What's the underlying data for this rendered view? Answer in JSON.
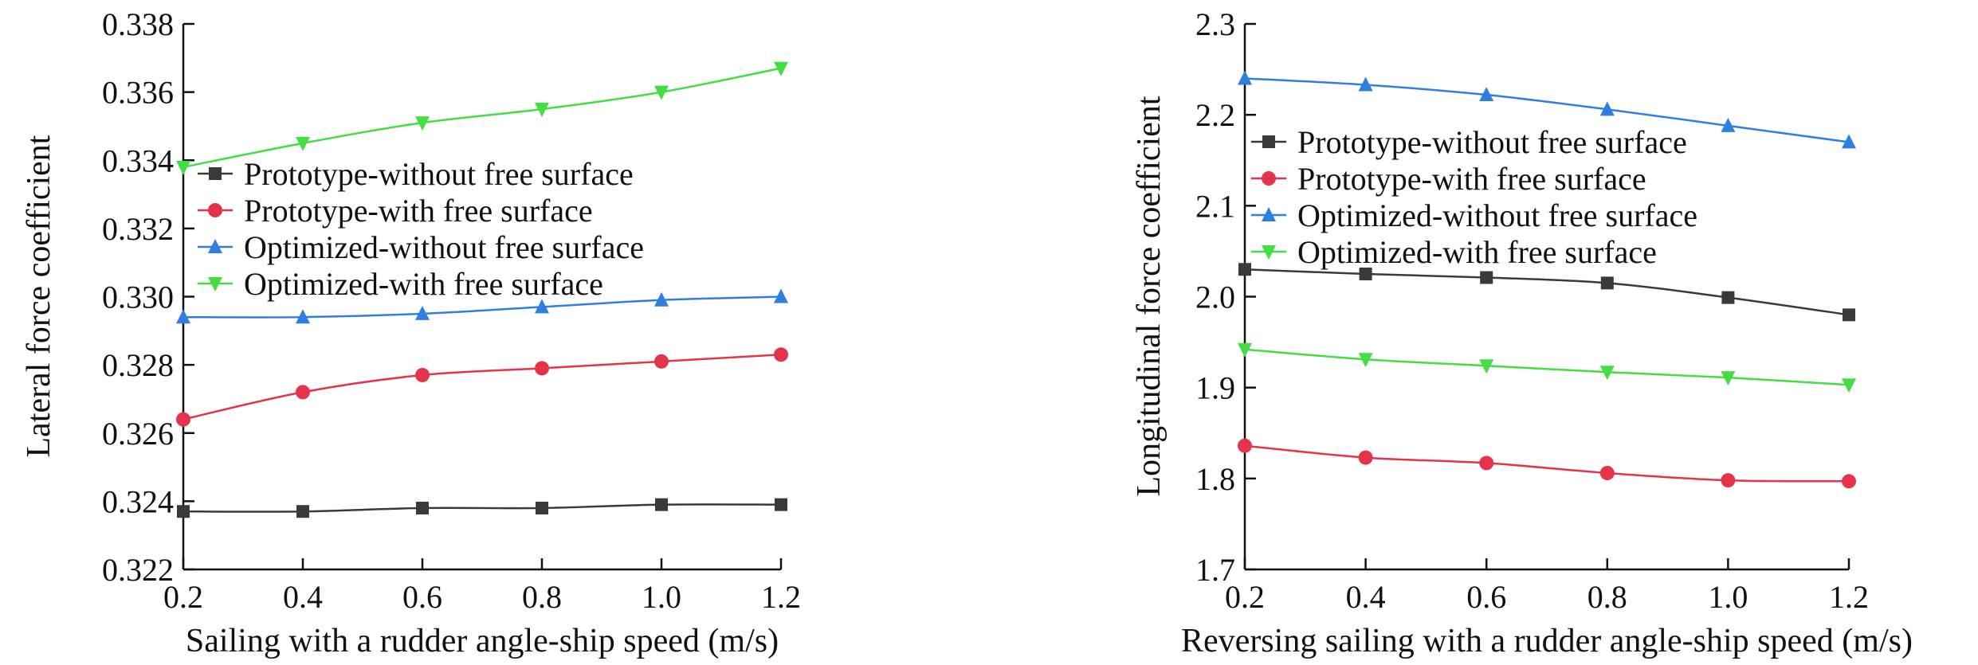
{
  "chart_data": [
    {
      "type": "line",
      "title": "",
      "xlabel": "Sailing with a rudder angle-ship speed (m/s)",
      "ylabel": "Lateral force coefficient",
      "x": [
        0.2,
        0.4,
        0.6,
        0.8,
        1.0,
        1.2
      ],
      "xlim": [
        0.2,
        1.2
      ],
      "ylim": [
        0.322,
        0.338
      ],
      "xticks": [
        "0.2",
        "0.4",
        "0.6",
        "0.8",
        "1.0",
        "1.2"
      ],
      "yticks": [
        "0.322",
        "0.324",
        "0.326",
        "0.328",
        "0.330",
        "0.332",
        "0.334",
        "0.336",
        "0.338"
      ],
      "grid": false,
      "legend_position": "upper-left",
      "series": [
        {
          "name": "Prototype-without free surface",
          "marker": "square",
          "color": "#3a3a3a",
          "values": [
            0.3237,
            0.3237,
            0.3238,
            0.3238,
            0.3239,
            0.3239
          ]
        },
        {
          "name": "Prototype-with free surface",
          "marker": "circle",
          "color": "#e5334b",
          "values": [
            0.3264,
            0.3272,
            0.3277,
            0.3279,
            0.3281,
            0.3283
          ]
        },
        {
          "name": "Optimized-without free surface",
          "marker": "triangle-up",
          "color": "#2f7fe0",
          "values": [
            0.3294,
            0.3294,
            0.3295,
            0.3297,
            0.3299,
            0.33
          ]
        },
        {
          "name": "Optimized-with free surface",
          "marker": "triangle-down",
          "color": "#44dd44",
          "values": [
            0.3338,
            0.3345,
            0.3351,
            0.3355,
            0.336,
            0.3367
          ]
        }
      ]
    },
    {
      "type": "line",
      "title": "",
      "xlabel": "Reversing sailing with a rudder angle-ship speed (m/s)",
      "ylabel": "Longitudinal force coefficient",
      "x": [
        0.2,
        0.4,
        0.6,
        0.8,
        1.0,
        1.2
      ],
      "xlim": [
        0.2,
        1.2
      ],
      "ylim": [
        1.7,
        2.3
      ],
      "xticks": [
        "0.2",
        "0.4",
        "0.6",
        "0.8",
        "1.0",
        "1.2"
      ],
      "yticks": [
        "1.7",
        "1.8",
        "1.9",
        "2.0",
        "2.1",
        "2.2",
        "2.3"
      ],
      "grid": false,
      "legend_position": "upper-left",
      "series": [
        {
          "name": "Prototype-without free surface",
          "marker": "square",
          "color": "#3a3a3a",
          "values": [
            2.03,
            2.025,
            2.021,
            2.015,
            1.999,
            1.98
          ]
        },
        {
          "name": "Prototype-with free surface",
          "marker": "circle",
          "color": "#e5334b",
          "values": [
            1.836,
            1.823,
            1.817,
            1.806,
            1.798,
            1.797
          ]
        },
        {
          "name": "Optimized-without free surface",
          "marker": "triangle-up",
          "color": "#2f7fe0",
          "values": [
            2.24,
            2.233,
            2.222,
            2.206,
            2.188,
            2.17
          ]
        },
        {
          "name": "Optimized-with free surface",
          "marker": "triangle-down",
          "color": "#44dd44",
          "values": [
            1.942,
            1.931,
            1.924,
            1.917,
            1.911,
            1.903
          ]
        }
      ]
    }
  ]
}
